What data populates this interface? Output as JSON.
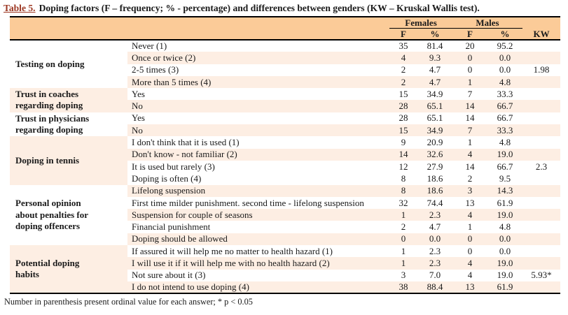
{
  "title": {
    "label": "Table 5.",
    "text": "Doping factors (F – frequency; % - percentage) and differences between genders (KW – Kruskal Wallis test)."
  },
  "table": {
    "column_headers": {
      "females": "Females",
      "males": "Males",
      "f": "F",
      "pct": "%",
      "kw": "KW"
    },
    "groups": [
      {
        "label": "Testing on doping",
        "label_shaded": false,
        "rows": [
          {
            "answer": "Never (1)",
            "f_f": "35",
            "f_pct": "81.4",
            "m_f": "20",
            "m_pct": "95.2",
            "kw": "",
            "shaded": false
          },
          {
            "answer": "Once or twice (2)",
            "f_f": "4",
            "f_pct": "9.3",
            "m_f": "0",
            "m_pct": "0.0",
            "kw": "",
            "shaded": true
          },
          {
            "answer": "2-5 times (3)",
            "f_f": "2",
            "f_pct": "4.7",
            "m_f": "0",
            "m_pct": "0.0",
            "kw": "1.98",
            "shaded": false
          },
          {
            "answer": "More than 5 times (4)",
            "f_f": "2",
            "f_pct": "4.7",
            "m_f": "1",
            "m_pct": "4.8",
            "kw": "",
            "shaded": true
          }
        ]
      },
      {
        "label": "Trust in coaches regarding doping",
        "label_shaded": true,
        "rows": [
          {
            "answer": "Yes",
            "f_f": "15",
            "f_pct": "34.9",
            "m_f": "7",
            "m_pct": "33.3",
            "kw": "",
            "shaded": false
          },
          {
            "answer": "No",
            "f_f": "28",
            "f_pct": "65.1",
            "m_f": "14",
            "m_pct": "66.7",
            "kw": "",
            "shaded": true
          }
        ]
      },
      {
        "label": "Trust in physicians regarding doping",
        "label_shaded": false,
        "rows": [
          {
            "answer": "Yes",
            "f_f": "28",
            "f_pct": "65.1",
            "m_f": "14",
            "m_pct": "66.7",
            "kw": "",
            "shaded": false
          },
          {
            "answer": "No",
            "f_f": "15",
            "f_pct": "34.9",
            "m_f": "7",
            "m_pct": "33.3",
            "kw": "",
            "shaded": true
          }
        ]
      },
      {
        "label": "Doping in tennis",
        "label_shaded": true,
        "rows": [
          {
            "answer": "I don't think that it is used (1)",
            "f_f": "9",
            "f_pct": "20.9",
            "m_f": "1",
            "m_pct": "4.8",
            "kw": "",
            "shaded": false
          },
          {
            "answer": "Don't know - not familiar (2)",
            "f_f": "14",
            "f_pct": "32.6",
            "m_f": "4",
            "m_pct": "19.0",
            "kw": "",
            "shaded": true
          },
          {
            "answer": "It is used but rarely (3)",
            "f_f": "12",
            "f_pct": "27.9",
            "m_f": "14",
            "m_pct": "66.7",
            "kw": "2.3",
            "shaded": false
          },
          {
            "answer": "Doping is often (4)",
            "f_f": "8",
            "f_pct": "18.6",
            "m_f": "2",
            "m_pct": "9.5",
            "kw": "",
            "shaded": false
          }
        ]
      },
      {
        "label": "Personal opinion about penalties for doping offencers",
        "label_shaded": false,
        "rows": [
          {
            "answer": "Lifelong suspension",
            "f_f": "8",
            "f_pct": "18.6",
            "m_f": "3",
            "m_pct": "14.3",
            "kw": "",
            "shaded": true
          },
          {
            "answer": "First time milder punishment. second time - lifelong suspension",
            "f_f": "32",
            "f_pct": "74.4",
            "m_f": "13",
            "m_pct": "61.9",
            "kw": "",
            "shaded": false
          },
          {
            "answer": "Suspension for couple of seasons",
            "f_f": "1",
            "f_pct": "2.3",
            "m_f": "4",
            "m_pct": "19.0",
            "kw": "",
            "shaded": true
          },
          {
            "answer": "Financial punishment",
            "f_f": "2",
            "f_pct": "4.7",
            "m_f": "1",
            "m_pct": "4.8",
            "kw": "",
            "shaded": false
          },
          {
            "answer": "Doping should be allowed",
            "f_f": "0",
            "f_pct": "0.0",
            "m_f": "0",
            "m_pct": "0.0",
            "kw": "",
            "shaded": true
          }
        ]
      },
      {
        "label": "Potential doping habits",
        "label_shaded": true,
        "rows": [
          {
            "answer": "If assured it will help me no matter to health hazard (1)",
            "f_f": "1",
            "f_pct": "2.3",
            "m_f": "0",
            "m_pct": "0.0",
            "kw": "",
            "shaded": false
          },
          {
            "answer": "I will use it if it will help me with no health hazard (2)",
            "f_f": "1",
            "f_pct": "2.3",
            "m_f": "4",
            "m_pct": "19.0",
            "kw": "",
            "shaded": true
          },
          {
            "answer": "Not sure about it (3)",
            "f_f": "3",
            "f_pct": "7.0",
            "m_f": "4",
            "m_pct": "19.0",
            "kw": "5.93*",
            "shaded": false
          },
          {
            "answer": "I do not intend to use doping (4)",
            "f_f": "38",
            "f_pct": "88.4",
            "m_f": "13",
            "m_pct": "61.9",
            "kw": "",
            "shaded": true
          }
        ]
      }
    ]
  },
  "footnote": "Number in parenthesis present ordinal value for each answer; * p < 0.05",
  "colors": {
    "header_bg": "#FBCB98",
    "stripe_bg": "#FDEEE3",
    "title_accent": "#9C3722",
    "border": "#000000"
  }
}
